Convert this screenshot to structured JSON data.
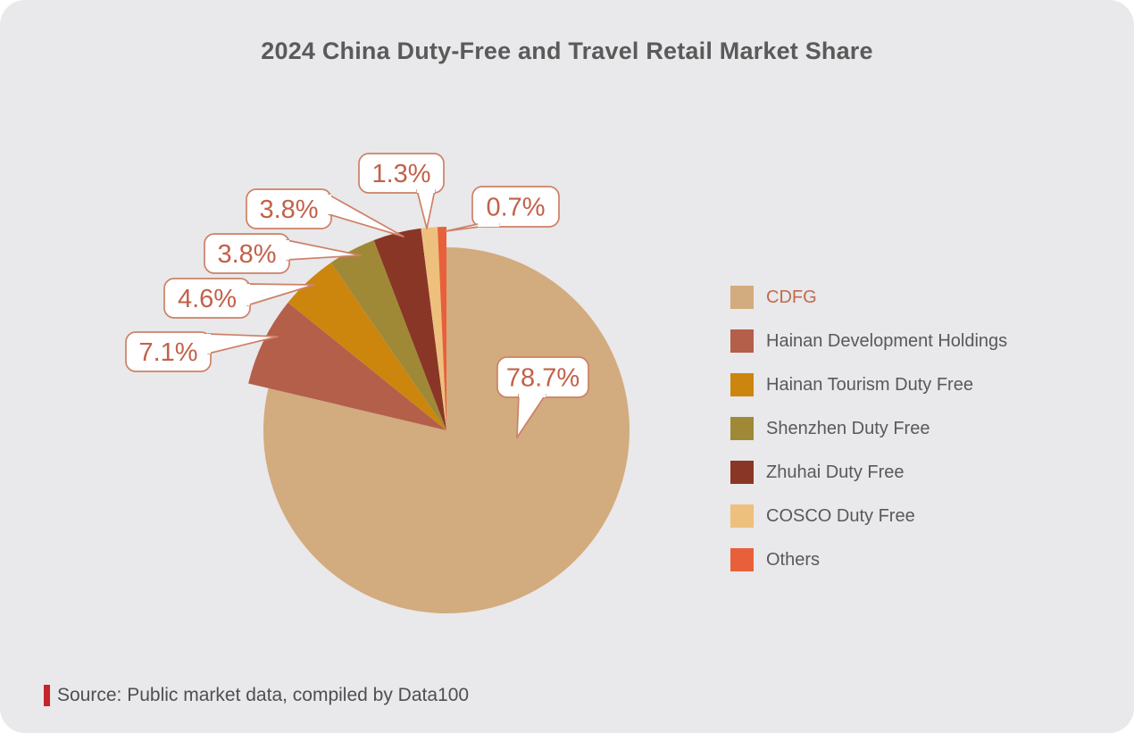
{
  "title": "2024 China Duty-Free and Travel Retail Market Share",
  "source_note": "Source: Public market data, compiled by Data100",
  "chart_data": {
    "type": "pie",
    "title": "2024 China Duty-Free and Travel Retail Market Share",
    "units": "%",
    "direction": "clockwise",
    "start_angle_deg": 0,
    "legend_position": "right",
    "series": [
      {
        "name": "CDFG",
        "value": 78.7,
        "label": "78.7%",
        "color": "#d2ab7e"
      },
      {
        "name": "Hainan Development Holdings",
        "value": 7.1,
        "label": "7.1%",
        "color": "#b45f4a"
      },
      {
        "name": "Hainan Tourism Duty Free",
        "value": 4.6,
        "label": "4.6%",
        "color": "#cc860e"
      },
      {
        "name": "Shenzhen Duty Free",
        "value": 3.8,
        "label": "3.8%",
        "color": "#9f8937"
      },
      {
        "name": "Zhuhai Duty Free",
        "value": 3.8,
        "label": "3.8%",
        "color": "#8a3626"
      },
      {
        "name": "COSCO Duty Free",
        "value": 1.3,
        "label": "1.3%",
        "color": "#eec07e"
      },
      {
        "name": "Others",
        "value": 0.7,
        "label": "0.7%",
        "color": "#e8603a"
      }
    ]
  },
  "legend": {
    "highlighted_item": "CDFG"
  },
  "styles": {
    "page_background": "#ffffff",
    "card_background": "#e9e8ea",
    "title_color": "#5a5a5a",
    "legend_text_color": "#595959",
    "legend_highlight_color": "#bf6a4e",
    "callout_text_color": "#c2614a",
    "callout_border_color": "#cd8166",
    "callout_fill": "#ffffff",
    "source_bar_color": "#c5242c",
    "source_text_color": "#4f4f4f"
  }
}
